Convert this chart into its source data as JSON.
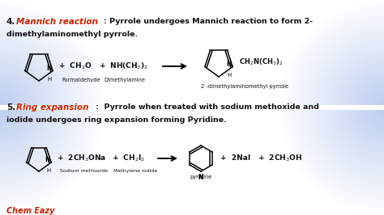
{
  "bg_color": "#ffffff",
  "blue_corner": "#6699cc",
  "text_color": "#111111",
  "red_color": "#cc2200",
  "footer": "Chem Eazy",
  "sec4_num": "4.",
  "sec4_label": "Mannich reaction",
  "sec4_colon": ": Pyrrole undergoes Mannich reaction to form 2-",
  "sec4_line2": "dimethylaminomethyl pyrrole.",
  "sec5_num": "5.",
  "sec5_label": "Ring expansion",
  "sec5_colon": " :  Pyrrole when treated with sodium methoxide and",
  "sec5_line2": "iodide undergoes ring expansion forming Pyridine.",
  "rxn4_plus1": "+  CH₂O",
  "rxn4_label1": "Formaldehyde",
  "rxn4_plus2": "+  NH(CH₃)₂",
  "rxn4_label2": "Dimethylamine",
  "rxn4_product": "CH₂N(CH₃)₂",
  "rxn4_prodlabel": "2 -dimethylaminomethyl pyrrole",
  "rxn5_plus1": "+  2CH₃ONa",
  "rxn5_label1": "Sodium methoxide",
  "rxn5_plus2": "+  CH₂I₂",
  "rxn5_label2": "Methylene iodide",
  "rxn5_prod1": "+  2NaI",
  "rxn5_prod2": "+  2CH₃OH",
  "rxn5_prodlabel": "pyridine"
}
